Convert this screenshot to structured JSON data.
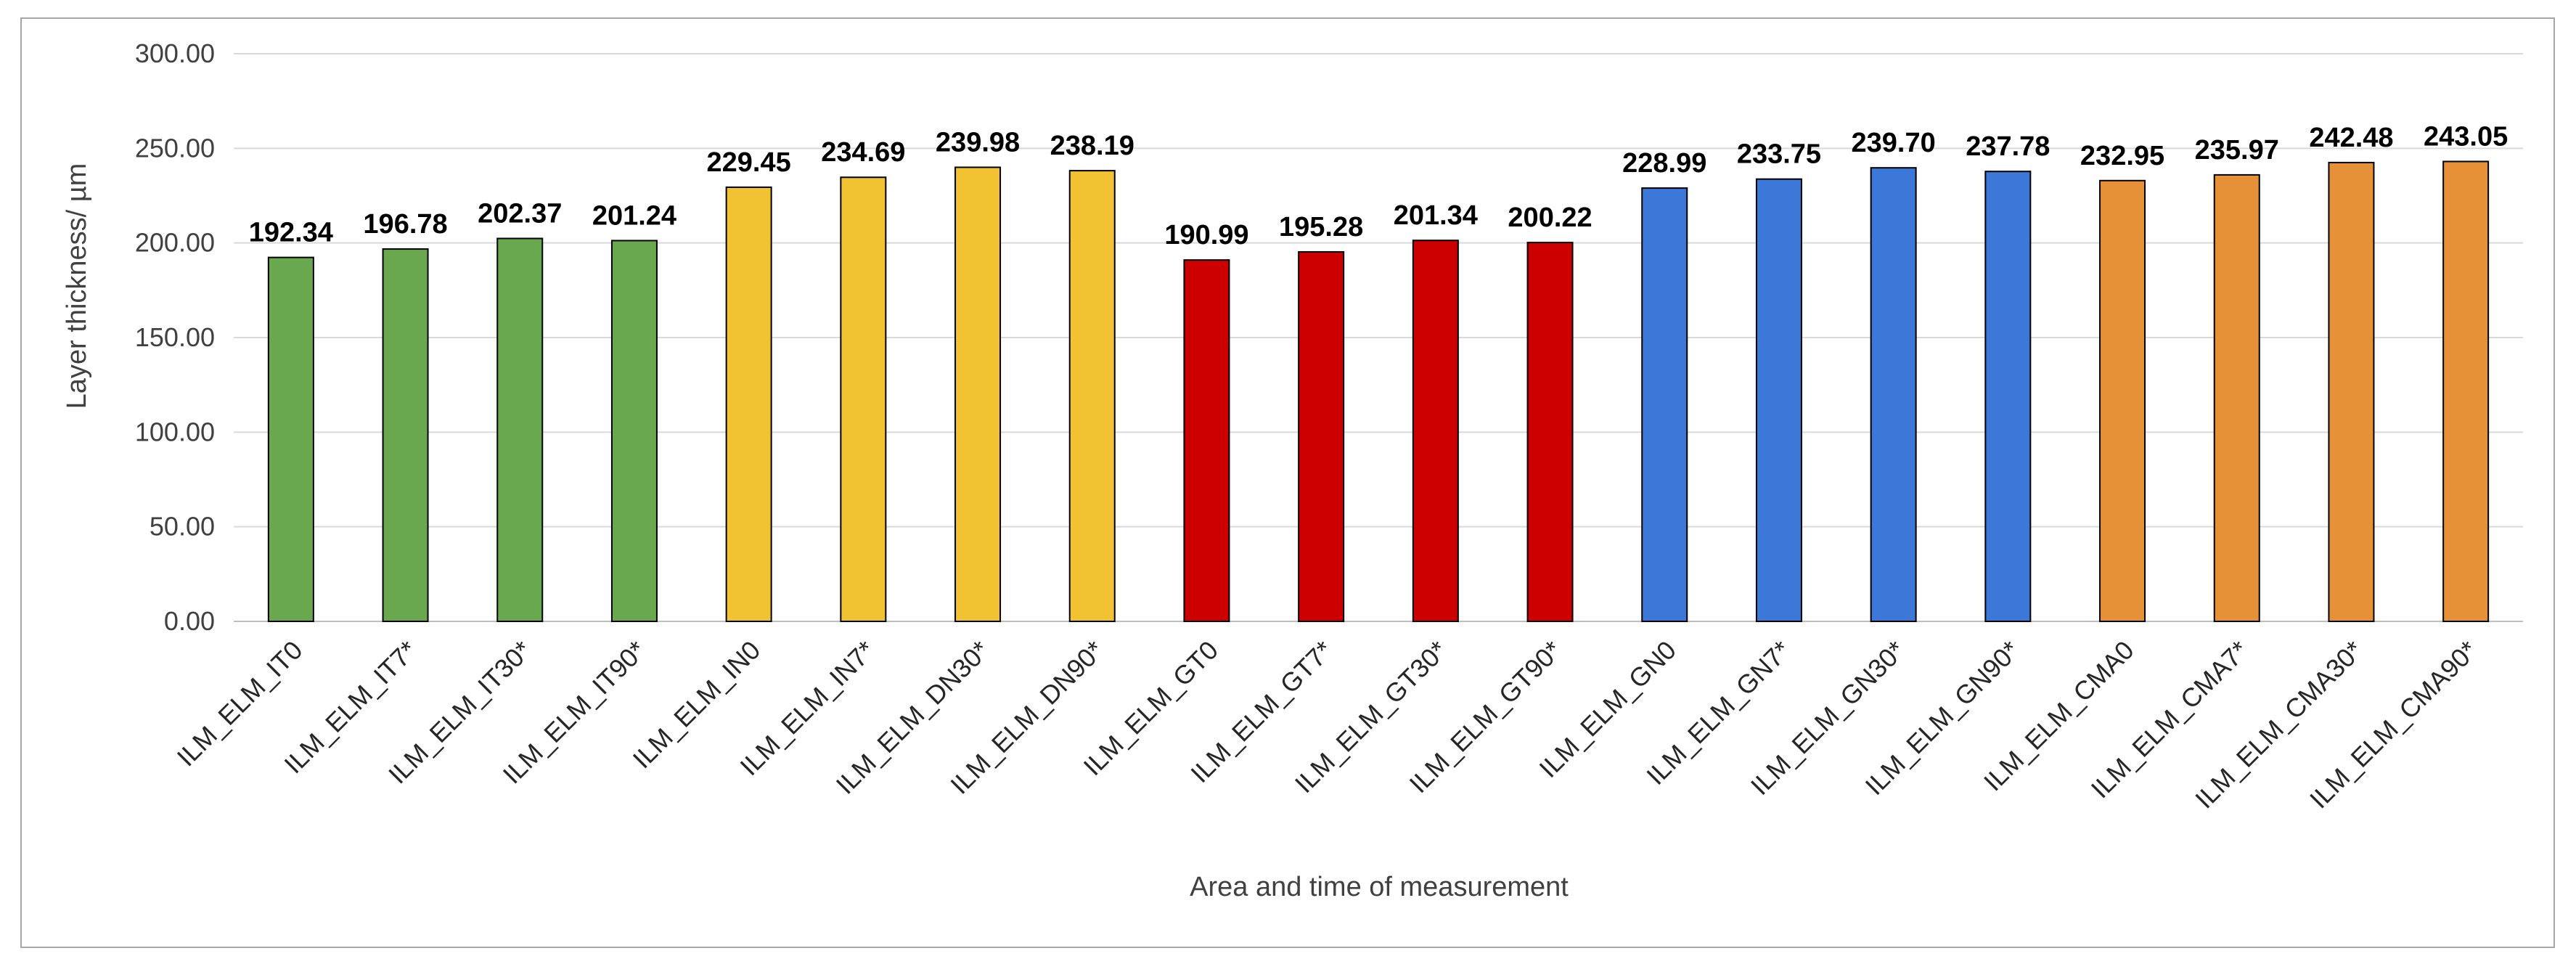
{
  "chart_data": {
    "type": "bar",
    "title": "",
    "xlabel": "Area and time of measurement",
    "ylabel": "Layer thickness/ µm",
    "ylim": [
      0,
      300
    ],
    "ytick_step": 50,
    "ytick_labels": [
      "0.00",
      "50.00",
      "100.00",
      "150.00",
      "200.00",
      "250.00",
      "300.00"
    ],
    "grid": true,
    "legend": "none",
    "categories": [
      "ILM_ELM_IT0",
      "ILM_ELM_IT7*",
      "ILM_ELM_IT30*",
      "ILM_ELM_IT90*",
      "ILM_ELM_IN0",
      "ILM_ELM_IN7*",
      "ILM_ELM_DN30*",
      "ILM_ELM_DN90*",
      "ILM_ELM_GT0",
      "ILM_ELM_GT7*",
      "ILM_ELM_GT30*",
      "ILM_ELM_GT90*",
      "ILM_ELM_GN0",
      "ILM_ELM_GN7*",
      "ILM_ELM_GN30*",
      "ILM_ELM_GN90*",
      "ILM_ELM_CMA0",
      "ILM_ELM_CMA7*",
      "ILM_ELM_CMA30*",
      "ILM_ELM_CMA90*"
    ],
    "values": [
      192.34,
      196.78,
      202.37,
      201.24,
      229.45,
      234.69,
      239.98,
      238.19,
      190.99,
      195.28,
      201.34,
      200.22,
      228.99,
      233.75,
      239.7,
      237.78,
      232.95,
      235.97,
      242.48,
      243.05
    ],
    "value_labels": [
      "192.34",
      "196.78",
      "202.37",
      "201.24",
      "229.45",
      "234.69",
      "239.98",
      "238.19",
      "190.99",
      "195.28",
      "201.34",
      "200.22",
      "228.99",
      "233.75",
      "239.70",
      "237.78",
      "232.95",
      "235.97",
      "242.48",
      "243.05"
    ],
    "bar_colors": [
      "#6aa84f",
      "#6aa84f",
      "#6aa84f",
      "#6aa84f",
      "#f1c232",
      "#f1c232",
      "#f1c232",
      "#f1c232",
      "#cc0000",
      "#cc0000",
      "#cc0000",
      "#cc0000",
      "#3c78d8",
      "#3c78d8",
      "#3c78d8",
      "#3c78d8",
      "#e69138",
      "#e69138",
      "#e69138",
      "#e69138"
    ],
    "bar_outline_color": "#000000",
    "grid_color": "#d9d9d9",
    "axis_color": "#bfbfbf"
  }
}
